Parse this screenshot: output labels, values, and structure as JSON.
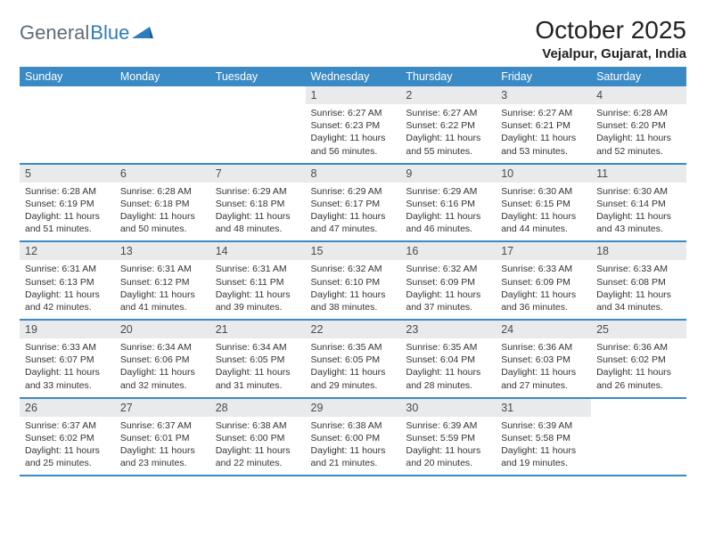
{
  "brand": {
    "word1": "General",
    "word2": "Blue"
  },
  "title": "October 2025",
  "location": "Vejalpur, Gujarat, India",
  "colors": {
    "header_bg": "#3a8ac6",
    "header_fg": "#ffffff",
    "daynum_bg": "#e9eaeb",
    "rule": "#3a8ac6",
    "brand_gray": "#5f6b76",
    "brand_blue": "#2f7bbf"
  },
  "daysOfWeek": [
    "Sunday",
    "Monday",
    "Tuesday",
    "Wednesday",
    "Thursday",
    "Friday",
    "Saturday"
  ],
  "weeks": [
    [
      {
        "n": "",
        "lines": []
      },
      {
        "n": "",
        "lines": []
      },
      {
        "n": "",
        "lines": []
      },
      {
        "n": "1",
        "lines": [
          "Sunrise: 6:27 AM",
          "Sunset: 6:23 PM",
          "Daylight: 11 hours and 56 minutes."
        ]
      },
      {
        "n": "2",
        "lines": [
          "Sunrise: 6:27 AM",
          "Sunset: 6:22 PM",
          "Daylight: 11 hours and 55 minutes."
        ]
      },
      {
        "n": "3",
        "lines": [
          "Sunrise: 6:27 AM",
          "Sunset: 6:21 PM",
          "Daylight: 11 hours and 53 minutes."
        ]
      },
      {
        "n": "4",
        "lines": [
          "Sunrise: 6:28 AM",
          "Sunset: 6:20 PM",
          "Daylight: 11 hours and 52 minutes."
        ]
      }
    ],
    [
      {
        "n": "5",
        "lines": [
          "Sunrise: 6:28 AM",
          "Sunset: 6:19 PM",
          "Daylight: 11 hours and 51 minutes."
        ]
      },
      {
        "n": "6",
        "lines": [
          "Sunrise: 6:28 AM",
          "Sunset: 6:18 PM",
          "Daylight: 11 hours and 50 minutes."
        ]
      },
      {
        "n": "7",
        "lines": [
          "Sunrise: 6:29 AM",
          "Sunset: 6:18 PM",
          "Daylight: 11 hours and 48 minutes."
        ]
      },
      {
        "n": "8",
        "lines": [
          "Sunrise: 6:29 AM",
          "Sunset: 6:17 PM",
          "Daylight: 11 hours and 47 minutes."
        ]
      },
      {
        "n": "9",
        "lines": [
          "Sunrise: 6:29 AM",
          "Sunset: 6:16 PM",
          "Daylight: 11 hours and 46 minutes."
        ]
      },
      {
        "n": "10",
        "lines": [
          "Sunrise: 6:30 AM",
          "Sunset: 6:15 PM",
          "Daylight: 11 hours and 44 minutes."
        ]
      },
      {
        "n": "11",
        "lines": [
          "Sunrise: 6:30 AM",
          "Sunset: 6:14 PM",
          "Daylight: 11 hours and 43 minutes."
        ]
      }
    ],
    [
      {
        "n": "12",
        "lines": [
          "Sunrise: 6:31 AM",
          "Sunset: 6:13 PM",
          "Daylight: 11 hours and 42 minutes."
        ]
      },
      {
        "n": "13",
        "lines": [
          "Sunrise: 6:31 AM",
          "Sunset: 6:12 PM",
          "Daylight: 11 hours and 41 minutes."
        ]
      },
      {
        "n": "14",
        "lines": [
          "Sunrise: 6:31 AM",
          "Sunset: 6:11 PM",
          "Daylight: 11 hours and 39 minutes."
        ]
      },
      {
        "n": "15",
        "lines": [
          "Sunrise: 6:32 AM",
          "Sunset: 6:10 PM",
          "Daylight: 11 hours and 38 minutes."
        ]
      },
      {
        "n": "16",
        "lines": [
          "Sunrise: 6:32 AM",
          "Sunset: 6:09 PM",
          "Daylight: 11 hours and 37 minutes."
        ]
      },
      {
        "n": "17",
        "lines": [
          "Sunrise: 6:33 AM",
          "Sunset: 6:09 PM",
          "Daylight: 11 hours and 36 minutes."
        ]
      },
      {
        "n": "18",
        "lines": [
          "Sunrise: 6:33 AM",
          "Sunset: 6:08 PM",
          "Daylight: 11 hours and 34 minutes."
        ]
      }
    ],
    [
      {
        "n": "19",
        "lines": [
          "Sunrise: 6:33 AM",
          "Sunset: 6:07 PM",
          "Daylight: 11 hours and 33 minutes."
        ]
      },
      {
        "n": "20",
        "lines": [
          "Sunrise: 6:34 AM",
          "Sunset: 6:06 PM",
          "Daylight: 11 hours and 32 minutes."
        ]
      },
      {
        "n": "21",
        "lines": [
          "Sunrise: 6:34 AM",
          "Sunset: 6:05 PM",
          "Daylight: 11 hours and 31 minutes."
        ]
      },
      {
        "n": "22",
        "lines": [
          "Sunrise: 6:35 AM",
          "Sunset: 6:05 PM",
          "Daylight: 11 hours and 29 minutes."
        ]
      },
      {
        "n": "23",
        "lines": [
          "Sunrise: 6:35 AM",
          "Sunset: 6:04 PM",
          "Daylight: 11 hours and 28 minutes."
        ]
      },
      {
        "n": "24",
        "lines": [
          "Sunrise: 6:36 AM",
          "Sunset: 6:03 PM",
          "Daylight: 11 hours and 27 minutes."
        ]
      },
      {
        "n": "25",
        "lines": [
          "Sunrise: 6:36 AM",
          "Sunset: 6:02 PM",
          "Daylight: 11 hours and 26 minutes."
        ]
      }
    ],
    [
      {
        "n": "26",
        "lines": [
          "Sunrise: 6:37 AM",
          "Sunset: 6:02 PM",
          "Daylight: 11 hours and 25 minutes."
        ]
      },
      {
        "n": "27",
        "lines": [
          "Sunrise: 6:37 AM",
          "Sunset: 6:01 PM",
          "Daylight: 11 hours and 23 minutes."
        ]
      },
      {
        "n": "28",
        "lines": [
          "Sunrise: 6:38 AM",
          "Sunset: 6:00 PM",
          "Daylight: 11 hours and 22 minutes."
        ]
      },
      {
        "n": "29",
        "lines": [
          "Sunrise: 6:38 AM",
          "Sunset: 6:00 PM",
          "Daylight: 11 hours and 21 minutes."
        ]
      },
      {
        "n": "30",
        "lines": [
          "Sunrise: 6:39 AM",
          "Sunset: 5:59 PM",
          "Daylight: 11 hours and 20 minutes."
        ]
      },
      {
        "n": "31",
        "lines": [
          "Sunrise: 6:39 AM",
          "Sunset: 5:58 PM",
          "Daylight: 11 hours and 19 minutes."
        ]
      },
      {
        "n": "",
        "lines": []
      }
    ]
  ]
}
